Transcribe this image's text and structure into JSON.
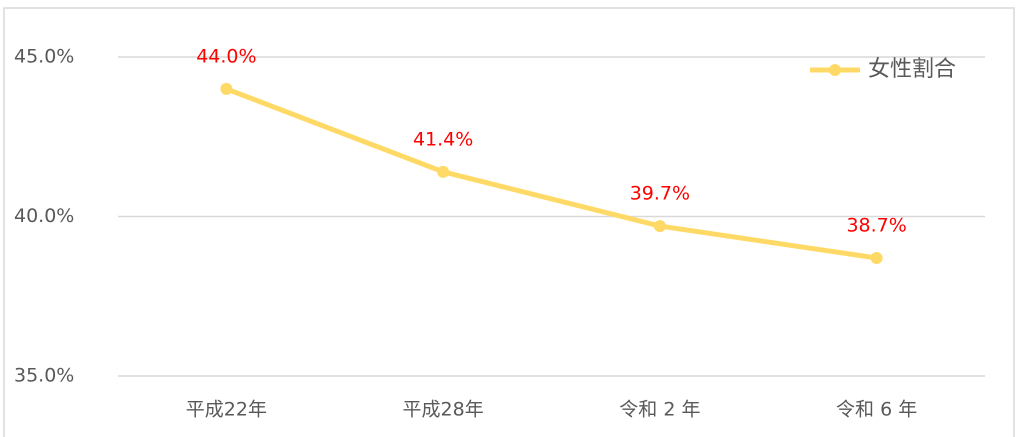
{
  "chart_data": {
    "type": "line",
    "categories": [
      "平成22年",
      "平成28年",
      "令和 2 年",
      "令和 6 年"
    ],
    "series": [
      {
        "name": "女性割合",
        "color": "#ffd966",
        "values": [
          44.0,
          41.4,
          39.7,
          38.7
        ],
        "value_labels": [
          "44.0%",
          "41.4%",
          "39.7%",
          "38.7%"
        ],
        "label_color": "#ff0000"
      }
    ],
    "ylim": [
      35,
      45
    ],
    "yticks": [
      {
        "value": 35,
        "label": "35.0%"
      },
      {
        "value": 40,
        "label": "40.0%"
      },
      {
        "value": 45,
        "label": "45.0%"
      }
    ],
    "grid": true,
    "legend": "upper right"
  }
}
